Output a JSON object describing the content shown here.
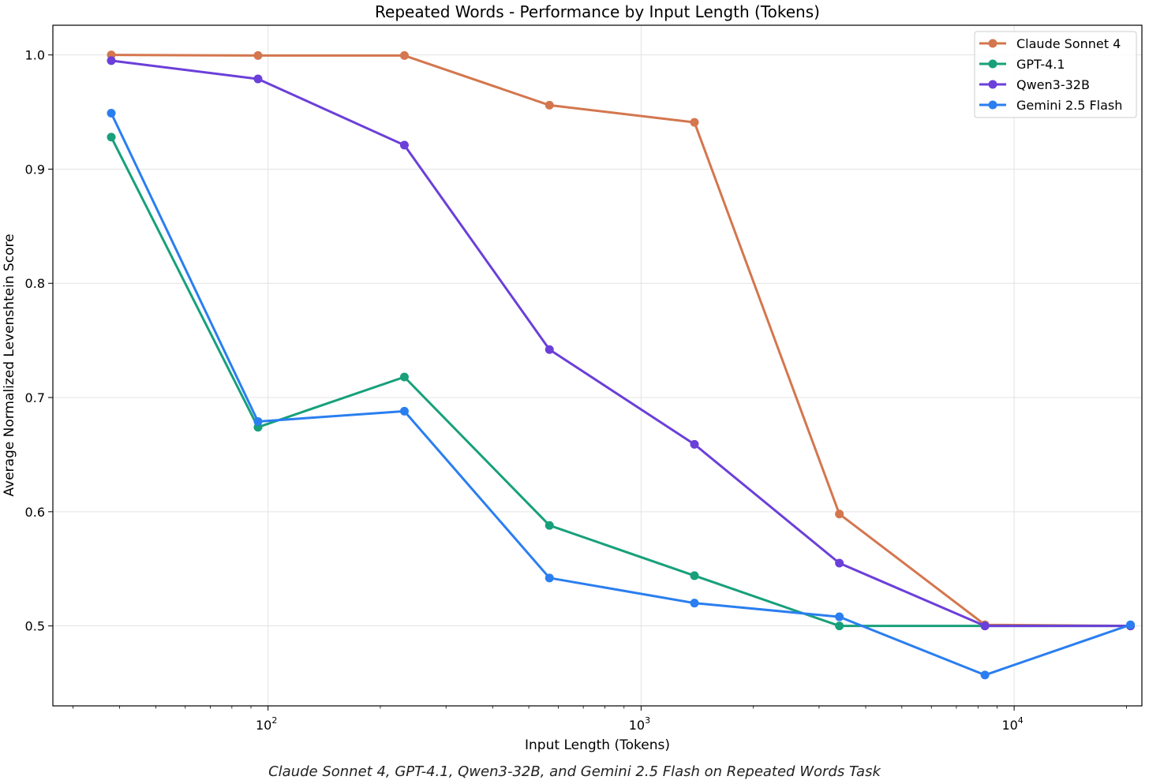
{
  "chart_data": {
    "type": "line",
    "title": "Repeated Words - Performance by Input Length (Tokens)",
    "xlabel": "Input Length (Tokens)",
    "ylabel": "Average Normalized Levenshtein Score",
    "xscale": "log",
    "xlim": [
      26.5,
      22000
    ],
    "ylim": [
      0.43,
      1.026
    ],
    "yticks": [
      0.5,
      0.6,
      0.7,
      0.8,
      0.9,
      1.0
    ],
    "ytick_labels": [
      "0.5",
      "0.6",
      "0.7",
      "0.8",
      "0.9",
      "1.0"
    ],
    "xticks": [
      {
        "value": 100,
        "base": "10",
        "exp": "2"
      },
      {
        "value": 1000,
        "base": "10",
        "exp": "3"
      },
      {
        "value": 10000,
        "base": "10",
        "exp": "4"
      }
    ],
    "grid": true,
    "legend_position": "top-right",
    "x": [
      38,
      94,
      232,
      568,
      1390,
      3400,
      8350,
      20500
    ],
    "series": [
      {
        "name": "Claude Sonnet 4",
        "color": "#d4764e",
        "values": [
          1.0,
          0.9995,
          0.9995,
          0.956,
          0.941,
          0.598,
          0.501,
          0.5
        ]
      },
      {
        "name": "GPT-4.1",
        "color": "#17a07a",
        "values": [
          0.928,
          0.674,
          0.718,
          0.588,
          0.544,
          0.5,
          0.5,
          0.5
        ]
      },
      {
        "name": "Qwen3-32B",
        "color": "#6b3fd9",
        "values": [
          0.995,
          0.979,
          0.921,
          0.742,
          0.659,
          0.555,
          0.5,
          0.5
        ]
      },
      {
        "name": "Gemini 2.5 Flash",
        "color": "#2a7ef0",
        "values": [
          0.949,
          0.679,
          0.688,
          0.542,
          0.52,
          0.508,
          0.457,
          0.501
        ]
      }
    ]
  },
  "caption": "Claude Sonnet 4, GPT-4.1, Qwen3-32B, and Gemini 2.5 Flash on Repeated Words Task"
}
